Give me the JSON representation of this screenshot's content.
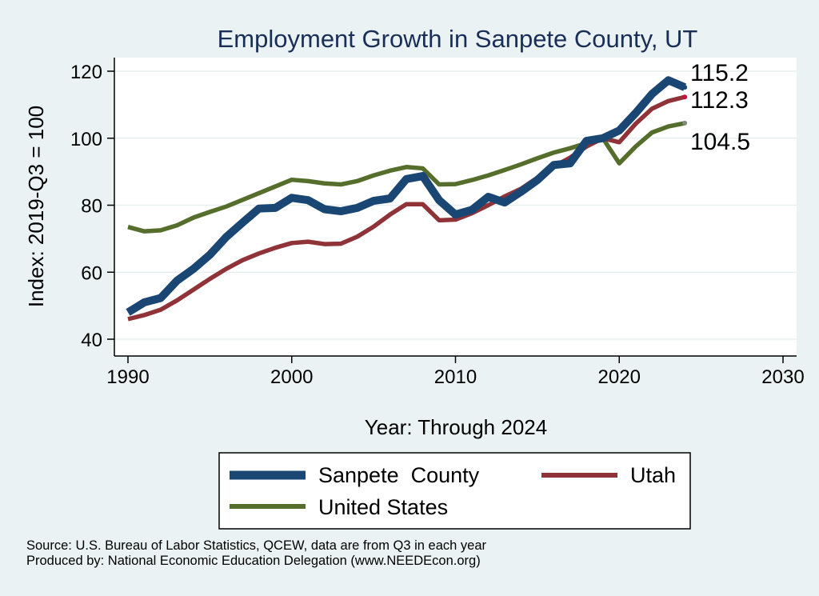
{
  "chart_data": {
    "type": "line",
    "title": "Employment Growth in Sanpete County, UT",
    "xlabel": "Year: Through 2024",
    "ylabel": "Index: 2019-Q3 = 100",
    "xlim": [
      1990,
      2030
    ],
    "ylim": [
      40,
      120
    ],
    "xticks": [
      "1990",
      "2000",
      "2010",
      "2020",
      "2030"
    ],
    "yticks": [
      "40",
      "60",
      "80",
      "100",
      "120"
    ],
    "grid": true,
    "legend_position": "bottom",
    "x": [
      1990,
      1991,
      1992,
      1993,
      1994,
      1995,
      1996,
      1997,
      1998,
      1999,
      2000,
      2001,
      2002,
      2003,
      2004,
      2005,
      2006,
      2007,
      2008,
      2009,
      2010,
      2011,
      2012,
      2013,
      2014,
      2015,
      2016,
      2017,
      2018,
      2019,
      2020,
      2021,
      2022,
      2023,
      2024
    ],
    "series": [
      {
        "name": "Sanpete  County",
        "color": "#1a4674",
        "values": [
          48.0,
          51.0,
          52.3,
          57.5,
          61.0,
          65.2,
          70.5,
          74.8,
          79.0,
          79.2,
          82.2,
          81.5,
          78.8,
          78.2,
          79.2,
          81.3,
          82.0,
          87.8,
          88.7,
          81.5,
          77.2,
          78.6,
          82.5,
          80.8,
          84.0,
          87.5,
          92.0,
          92.5,
          99.2,
          100.0,
          102.3,
          107.5,
          113.2,
          117.3,
          115.2
        ]
      },
      {
        "name": "Utah",
        "color": "#8f3338",
        "values": [
          46.0,
          47.2,
          48.8,
          51.6,
          54.8,
          58.0,
          61.0,
          63.6,
          65.6,
          67.3,
          68.7,
          69.1,
          68.4,
          68.5,
          70.6,
          73.6,
          77.2,
          80.3,
          80.3,
          75.5,
          75.7,
          77.6,
          80.0,
          82.6,
          84.9,
          88.2,
          91.5,
          94.2,
          97.5,
          100.0,
          98.8,
          104.3,
          108.8,
          111.1,
          112.3
        ]
      },
      {
        "name": "United States",
        "color": "#556e2c",
        "values": [
          73.5,
          72.2,
          72.5,
          74.0,
          76.3,
          78.0,
          79.6,
          81.6,
          83.6,
          85.6,
          87.6,
          87.2,
          86.5,
          86.2,
          87.2,
          88.9,
          90.3,
          91.4,
          91.0,
          86.2,
          86.3,
          87.5,
          88.9,
          90.5,
          92.2,
          94.0,
          95.7,
          97.0,
          98.5,
          100.0,
          92.5,
          97.5,
          101.7,
          103.5,
          104.5
        ]
      }
    ],
    "end_labels": [
      "115.2",
      "112.3",
      "104.5"
    ]
  },
  "source_lines": [
    "Source: U.S. Bureau of Labor Statistics, QCEW, data are from Q3 in each year",
    "Produced by: National Economic Education Delegation (www.NEEDEcon.org)"
  ]
}
